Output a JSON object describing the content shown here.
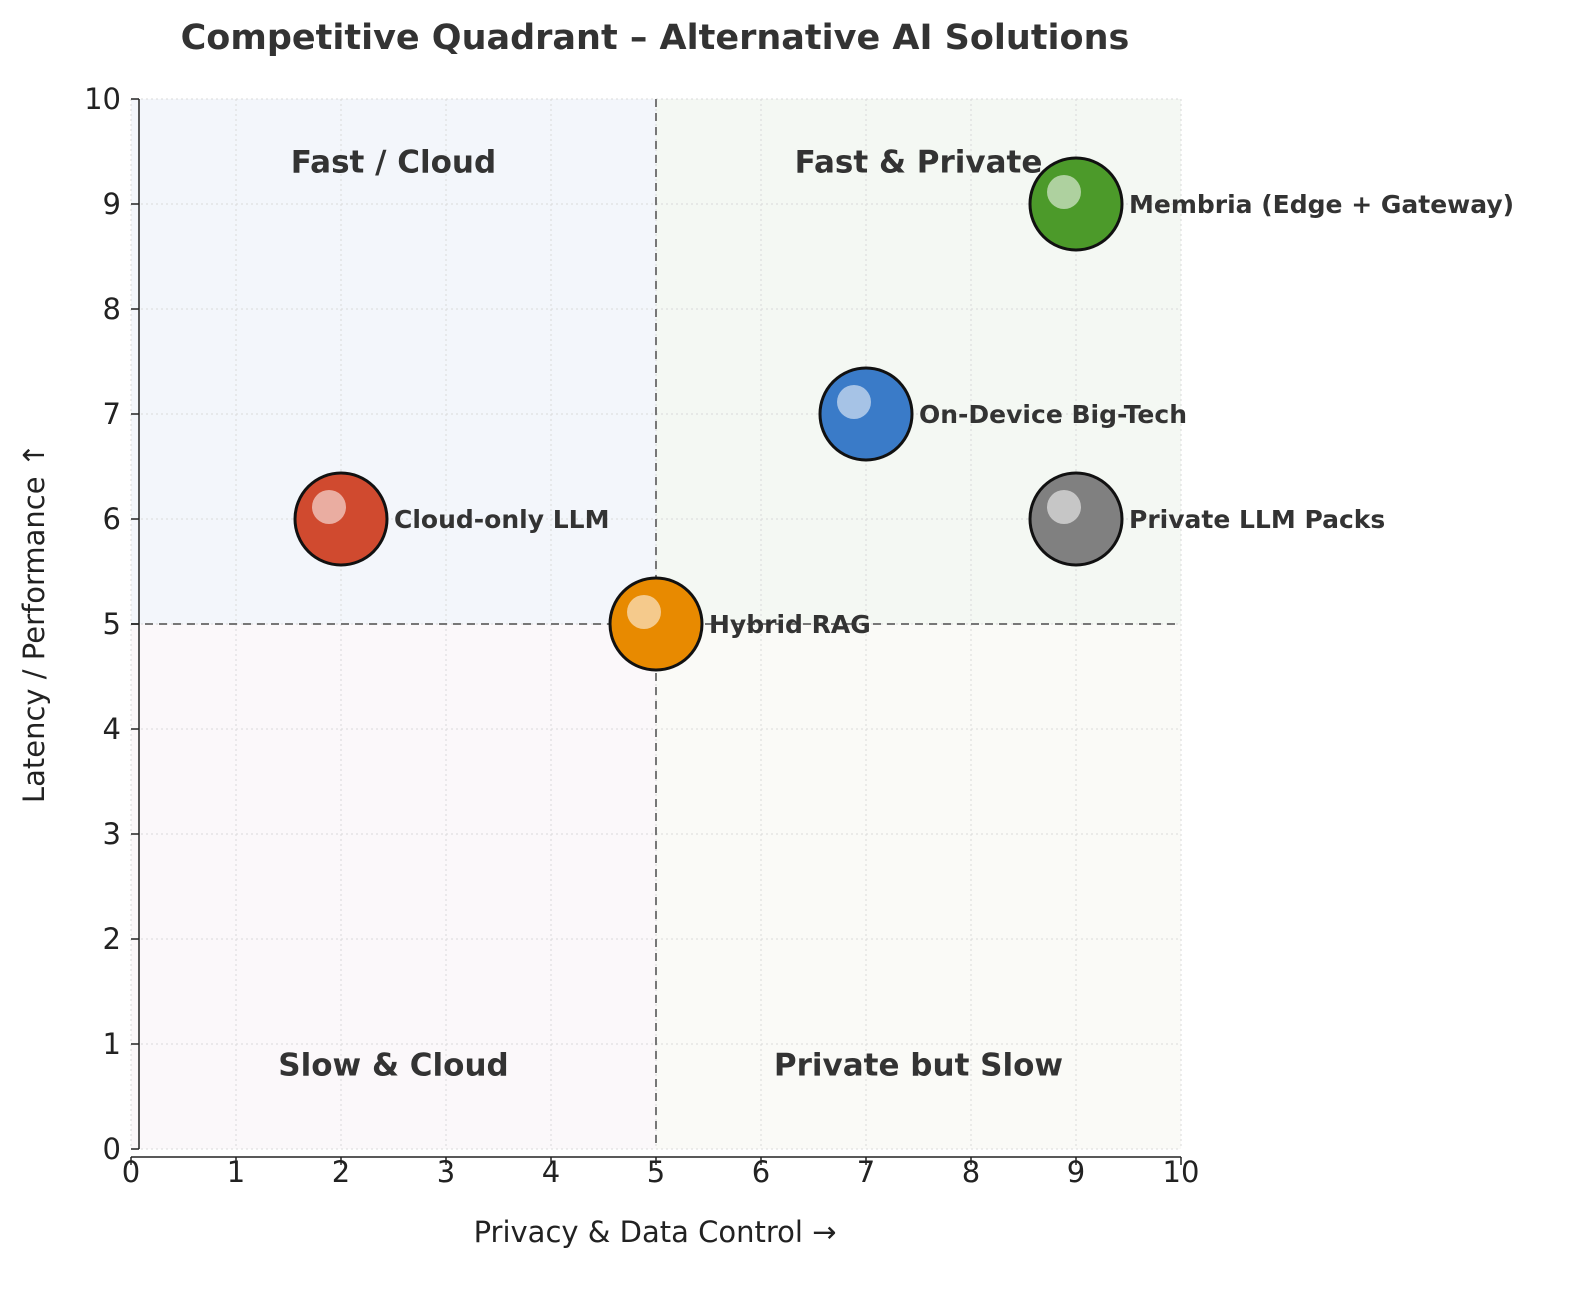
{
  "chart_data": {
    "type": "scatter",
    "title": "Competitive Quadrant – Alternative AI Solutions",
    "xlabel": "Privacy & Data Control →",
    "ylabel": "Latency / Performance ↑",
    "xlim": [
      0,
      10
    ],
    "ylim": [
      0,
      10
    ],
    "xticks": [
      "0",
      "1",
      "2",
      "3",
      "4",
      "5",
      "6",
      "7",
      "8",
      "9",
      "10"
    ],
    "yticks": [
      "0",
      "1",
      "2",
      "3",
      "4",
      "5",
      "6",
      "7",
      "8",
      "9",
      "10"
    ],
    "grid": true,
    "divider": {
      "x": 5,
      "y": 5
    },
    "quadrants": [
      {
        "label": "Fast / Cloud",
        "position": "top-left",
        "color": "#f3f6fb"
      },
      {
        "label": "Fast & Private",
        "position": "top-right",
        "color": "#f4f8f3"
      },
      {
        "label": "Slow & Cloud",
        "position": "bottom-left",
        "color": "#fbf8fa"
      },
      {
        "label": "Private but Slow",
        "position": "bottom-right",
        "color": "#fafaf7"
      }
    ],
    "points": [
      {
        "label": "Membria (Edge + Gateway)",
        "x": 9,
        "y": 9,
        "color": "#4c9a2a"
      },
      {
        "label": "On-Device Big-Tech",
        "x": 7,
        "y": 7,
        "color": "#3a7bc8"
      },
      {
        "label": "Cloud-only LLM",
        "x": 2,
        "y": 6,
        "color": "#d04a2f"
      },
      {
        "label": "Private LLM Packs",
        "x": 9,
        "y": 6,
        "color": "#808080"
      },
      {
        "label": "Hybrid RAG",
        "x": 5,
        "y": 5,
        "color": "#e88a00"
      }
    ]
  }
}
